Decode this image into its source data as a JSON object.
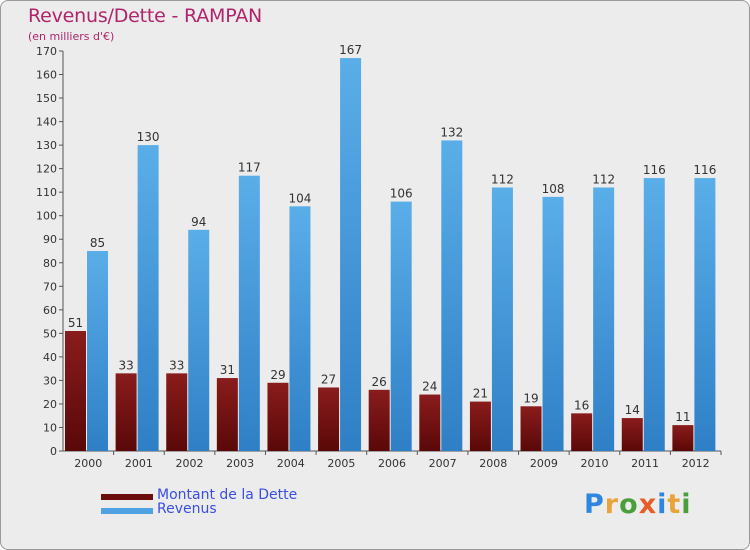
{
  "title": "Revenus/Dette - RAMPAN",
  "subtitle": "(en milliers d'€)",
  "colors": {
    "debt": "#7a1414",
    "revenue": "#4fa3e3",
    "title": "#b0246c",
    "legend_text": "#3a4ee0"
  },
  "legend": [
    {
      "label": "Montant de la Dette",
      "color": "#6b0d0d"
    },
    {
      "label": "Revenus",
      "color": "#4fa3e3"
    }
  ],
  "logo": {
    "text": "Proxiti",
    "letters": [
      {
        "ch": "P",
        "color": "#2e86de"
      },
      {
        "ch": "r",
        "color": "#e8a33a"
      },
      {
        "ch": "o",
        "color": "#4a9e3c"
      },
      {
        "ch": "x",
        "color": "#e85c2a"
      },
      {
        "ch": "i",
        "color": "#2e86de"
      },
      {
        "ch": "t",
        "color": "#e8a33a"
      },
      {
        "ch": "i",
        "color": "#4a9e3c"
      }
    ]
  },
  "chart_data": {
    "type": "bar",
    "title": "Revenus/Dette - RAMPAN",
    "subtitle": "(en milliers d'€)",
    "categories": [
      "2000",
      "2001",
      "2002",
      "2003",
      "2004",
      "2005",
      "2006",
      "2007",
      "2008",
      "2009",
      "2010",
      "2011",
      "2012"
    ],
    "series": [
      {
        "name": "Montant de la Dette",
        "values": [
          51,
          33,
          33,
          31,
          29,
          27,
          26,
          24,
          21,
          19,
          16,
          14,
          11
        ]
      },
      {
        "name": "Revenus",
        "values": [
          85,
          130,
          94,
          117,
          104,
          167,
          106,
          132,
          112,
          108,
          112,
          116,
          116
        ]
      }
    ],
    "ylim": [
      0,
      170
    ],
    "yticks": [
      0,
      10,
      20,
      30,
      40,
      50,
      60,
      70,
      80,
      90,
      100,
      110,
      120,
      130,
      140,
      150,
      160,
      170
    ],
    "grid": false,
    "legend_position": "bottom-left"
  }
}
